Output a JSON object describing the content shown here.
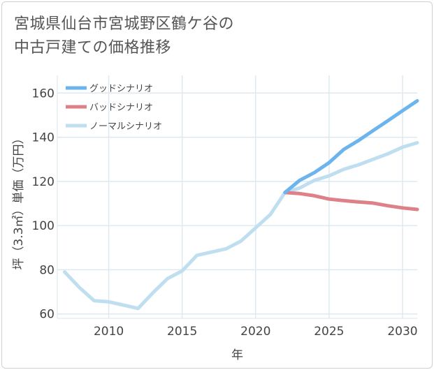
{
  "title_lines": [
    "宮城県仙台市宮城野区鶴ケ谷の",
    "中古戸建ての価格推移"
  ],
  "chart_data": {
    "type": "line",
    "title": "宮城県仙台市宮城野区鶴ケ谷の中古戸建ての価格推移",
    "xlabel": "年",
    "ylabel": "坪（3.3㎡）単価（万円）",
    "xlim": [
      2006.5,
      2031
    ],
    "ylim": [
      58,
      168
    ],
    "xticks": [
      2010,
      2015,
      2020,
      2025,
      2030
    ],
    "yticks": [
      60,
      80,
      100,
      120,
      140,
      160
    ],
    "grid": true,
    "legend_position": "top-left",
    "series": [
      {
        "name": "グッドシナリオ",
        "color": "#6cb4ee",
        "x": [
          2022,
          2023,
          2024,
          2025,
          2026,
          2027,
          2028,
          2029,
          2030,
          2031
        ],
        "y": [
          115,
          120.5,
          124,
          128.5,
          134.5,
          138.5,
          143,
          147.5,
          152,
          156.5
        ]
      },
      {
        "name": "バッドシナリオ",
        "color": "#dd8088",
        "x": [
          2022,
          2023,
          2024,
          2025,
          2026,
          2027,
          2028,
          2029,
          2030,
          2031
        ],
        "y": [
          115,
          114.5,
          113.5,
          112,
          111.3,
          110.7,
          110.2,
          109,
          108,
          107.3
        ]
      },
      {
        "name": "ノーマルシナリオ",
        "color": "#bfdff0",
        "x": [
          2007,
          2008,
          2009,
          2010,
          2011,
          2012,
          2013,
          2014,
          2015,
          2016,
          2017,
          2018,
          2019,
          2020,
          2021,
          2022,
          2023,
          2024,
          2025,
          2026,
          2027,
          2028,
          2029,
          2030,
          2031
        ],
        "y": [
          79,
          72,
          66,
          65.5,
          64,
          62.5,
          69.5,
          76,
          79.5,
          86.5,
          88,
          89.5,
          93,
          99,
          105,
          115,
          117,
          120.5,
          122.5,
          125.5,
          127.5,
          130,
          132.5,
          135.5,
          137.5
        ]
      }
    ]
  }
}
